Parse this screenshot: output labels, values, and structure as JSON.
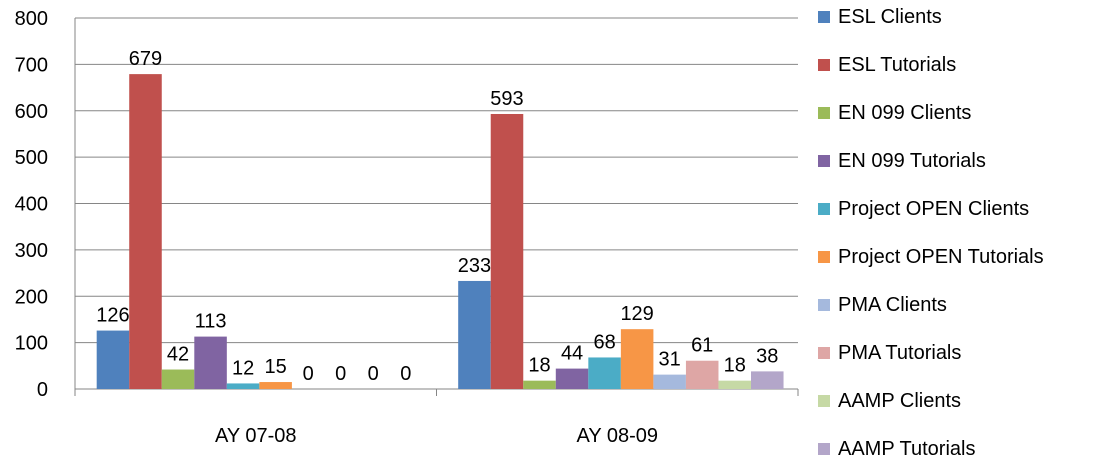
{
  "chart_data": {
    "type": "bar",
    "categories": [
      "AY 07-08",
      "AY 08-09"
    ],
    "ylim": [
      0,
      800
    ],
    "yticks": [
      0,
      100,
      200,
      300,
      400,
      500,
      600,
      700,
      800
    ],
    "grid": true,
    "legend_position": "right",
    "series": [
      {
        "name": "ESL Clients",
        "color": "#4f81bd",
        "values": [
          126,
          233
        ]
      },
      {
        "name": "ESL Tutorials",
        "color": "#c0504d",
        "values": [
          679,
          593
        ]
      },
      {
        "name": "EN 099 Clients",
        "color": "#9bbb59",
        "values": [
          42,
          18
        ]
      },
      {
        "name": "EN 099 Tutorials",
        "color": "#8064a2",
        "values": [
          113,
          44
        ]
      },
      {
        "name": "Project OPEN Clients",
        "color": "#4bacc6",
        "values": [
          12,
          68
        ]
      },
      {
        "name": "Project OPEN Tutorials",
        "color": "#f79646",
        "values": [
          15,
          129
        ]
      },
      {
        "name": "PMA Clients",
        "color": "#a5b9dd",
        "values": [
          0,
          31
        ]
      },
      {
        "name": "PMA Tutorials",
        "color": "#dea6a5",
        "values": [
          0,
          61
        ]
      },
      {
        "name": "AAMP Clients",
        "color": "#c6d9a5",
        "values": [
          0,
          18
        ]
      },
      {
        "name": "AAMP Tutorials",
        "color": "#b3a6c9",
        "values": [
          0,
          38
        ]
      }
    ]
  }
}
